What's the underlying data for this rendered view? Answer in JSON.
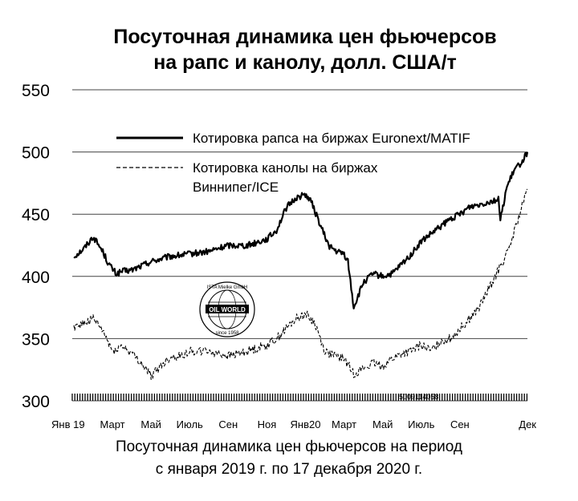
{
  "chart_data": {
    "type": "line",
    "title": [
      "Посуточная динамика цен фьючерсов",
      "на рапс и канолу, долл. США/т"
    ],
    "caption": [
      "Посуточная динамика цен фьючерсов на период",
      "с января 2019 г. по 17 декабря 2020 г."
    ],
    "ylim": [
      300,
      550
    ],
    "yticks": [
      "550",
      "500",
      "450",
      "400",
      "350",
      "300"
    ],
    "ytick_values": [
      550,
      500,
      450,
      400,
      350,
      300
    ],
    "grid": true,
    "legend_placement": "top-left",
    "x_labels": [
      "Янв 19",
      "Март",
      "Май",
      "Июль",
      "Сен",
      "Ноя",
      "Янв20",
      "Март",
      "Май",
      "Июль",
      "Сен",
      "Дек"
    ],
    "x_label_months": [
      0,
      2,
      4,
      6,
      8,
      10,
      12,
      14,
      16,
      18,
      20,
      23
    ],
    "watermark_code": "5009114058",
    "logo_text": {
      "top": "ISTA Mielke GmbH",
      "center": "OIL WORLD",
      "bottom": "since 1958"
    },
    "series": [
      {
        "name": "Котировка рапса на биржах Euronext/MATIF",
        "style": "solid",
        "color": "#000000",
        "x": [
          0,
          0.5,
          1,
          1.5,
          1.8,
          2.2,
          2.5,
          3,
          4,
          5,
          6,
          7,
          8,
          9,
          10,
          10.5,
          11,
          11.5,
          12,
          12.3,
          12.8,
          13.2,
          13.6,
          14,
          14.2,
          14.5,
          15,
          15.5,
          16,
          16.5,
          17,
          17.5,
          18,
          18.5,
          19,
          19.5,
          20,
          20.5,
          21,
          21.5,
          22,
          22.1,
          22.4,
          22.8,
          23.2,
          23.5
        ],
        "y": [
          416,
          422,
          432,
          420,
          410,
          402,
          404,
          405,
          412,
          416,
          418,
          420,
          425,
          425,
          430,
          437,
          455,
          463,
          466,
          460,
          440,
          425,
          420,
          418,
          412,
          375,
          395,
          402,
          400,
          402,
          410,
          418,
          428,
          434,
          440,
          446,
          450,
          456,
          458,
          460,
          462,
          445,
          470,
          485,
          492,
          500
        ]
      },
      {
        "name": "Котировка канолы на биржах Виннипег/ICE",
        "style": "dashed",
        "color": "#000000",
        "x": [
          0,
          0.5,
          1,
          1.5,
          2,
          2.5,
          3,
          3.5,
          4,
          4.5,
          5,
          5.5,
          6,
          7,
          8,
          9,
          10,
          10.5,
          11,
          11.5,
          12,
          12.5,
          13,
          13.5,
          14,
          14.5,
          15,
          15.5,
          16,
          16.5,
          17,
          17.5,
          18,
          18.5,
          19,
          19.5,
          20,
          20.5,
          21,
          21.5,
          22,
          22.5,
          23,
          23.5
        ],
        "y": [
          360,
          362,
          366,
          356,
          340,
          344,
          338,
          330,
          320,
          328,
          335,
          336,
          340,
          340,
          336,
          340,
          345,
          350,
          358,
          366,
          370,
          362,
          340,
          336,
          334,
          322,
          326,
          330,
          328,
          334,
          338,
          340,
          345,
          340,
          348,
          350,
          358,
          366,
          375,
          390,
          405,
          420,
          445,
          470
        ]
      }
    ]
  }
}
